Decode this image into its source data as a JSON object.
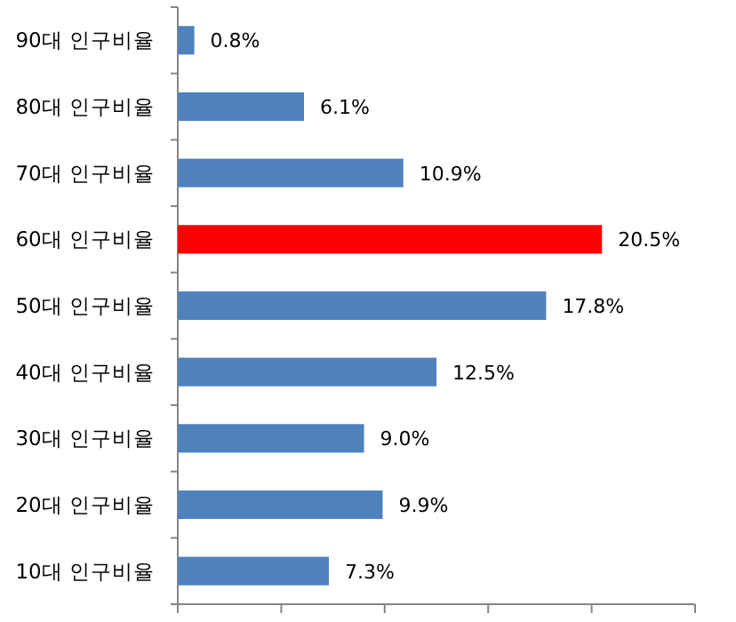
{
  "chart_data": {
    "type": "bar",
    "orientation": "horizontal",
    "categories": [
      "90대 인구비율",
      "80대 인구비율",
      "70대 인구비율",
      "60대 인구비율",
      "50대 인구비율",
      "40대 인구비율",
      "30대 인구비율",
      "20대 인구비율",
      "10대 인구비율"
    ],
    "values": [
      0.8,
      6.1,
      10.9,
      20.5,
      17.8,
      12.5,
      9.0,
      9.9,
      7.3
    ],
    "value_labels": [
      "0.8%",
      "6.1%",
      "10.9%",
      "20.5%",
      "17.8%",
      "12.5%",
      "9.0%",
      "9.9%",
      "7.3%"
    ],
    "colors": [
      "#4f81bd",
      "#4f81bd",
      "#4f81bd",
      "#ff0000",
      "#4f81bd",
      "#4f81bd",
      "#4f81bd",
      "#4f81bd",
      "#4f81bd"
    ],
    "xlim": [
      0,
      25
    ],
    "xticks": [
      {
        "value": 0,
        "label": null
      },
      {
        "value": 5,
        "label": null
      },
      {
        "value": 10,
        "label": null
      },
      {
        "value": 15,
        "label": null
      },
      {
        "value": 20,
        "label": null
      },
      {
        "value": 25,
        "label": null
      }
    ],
    "tick_labels": "y",
    "grid": false
  }
}
